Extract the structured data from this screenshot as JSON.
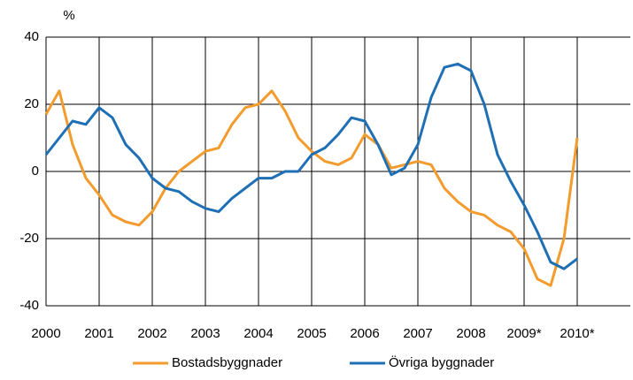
{
  "chart_data": {
    "type": "line",
    "y_label": "%",
    "x": [
      2000,
      2000.25,
      2000.5,
      2000.75,
      2001,
      2001.25,
      2001.5,
      2001.75,
      2002,
      2002.25,
      2002.5,
      2002.75,
      2003,
      2003.25,
      2003.5,
      2003.75,
      2004,
      2004.25,
      2004.5,
      2004.75,
      2005,
      2005.25,
      2005.5,
      2005.75,
      2006,
      2006.25,
      2006.5,
      2006.75,
      2007,
      2007.25,
      2007.5,
      2007.75,
      2008,
      2008.25,
      2008.5,
      2008.75,
      2009,
      2009.25,
      2009.5,
      2009.75,
      2010
    ],
    "series": [
      {
        "name": "Bostadsbyggnader",
        "color": "#f39b2c",
        "values": [
          17,
          24,
          8,
          -2,
          -7,
          -13,
          -15,
          -16,
          -12,
          -5,
          0,
          3,
          6,
          7,
          14,
          19,
          20,
          24,
          18,
          10,
          6,
          3,
          2,
          4,
          11,
          8,
          1,
          2,
          3,
          2,
          -5,
          -9,
          -12,
          -13,
          -16,
          -18,
          -23,
          -32,
          -34,
          -20,
          10
        ]
      },
      {
        "name": "Övriga byggnader",
        "color": "#1f6fb5",
        "values": [
          5,
          10,
          15,
          14,
          19,
          16,
          8,
          4,
          -2,
          -5,
          -6,
          -9,
          -11,
          -12,
          -8,
          -5,
          -2,
          -2,
          0,
          0,
          5,
          7,
          11,
          16,
          15,
          8,
          -1,
          1,
          8,
          22,
          31,
          32,
          30,
          20,
          5,
          -3,
          -10,
          -18,
          -27,
          -29,
          -26
        ]
      }
    ],
    "xlim": [
      2000,
      2011
    ],
    "xticks": [
      2000,
      2001,
      2002,
      2003,
      2004,
      2005,
      2006,
      2007,
      2008,
      {
        "value": 2009,
        "label": "2009*"
      },
      {
        "value": 2010,
        "label": "2010*"
      }
    ],
    "ylim": [
      -40,
      40
    ],
    "yticks": [
      -40,
      -20,
      0,
      20,
      40
    ],
    "grid": true,
    "legend": "bottom"
  }
}
